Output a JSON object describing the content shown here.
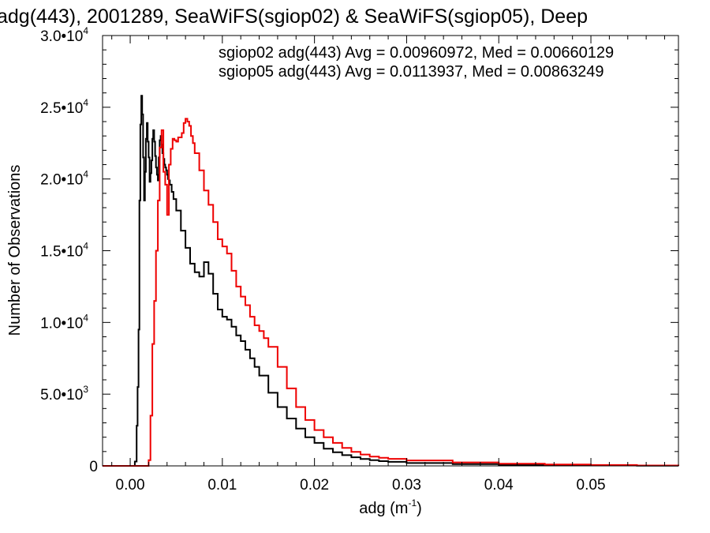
{
  "chart_data": {
    "type": "line",
    "title": "adg(443), 2001289, SeaWiFS(sgiop02) & SeaWiFS(sgiop05), Deep",
    "xlabel": "adg (m",
    "xlabel_sup": "-1",
    "xlabel_end": ")",
    "ylabel": "Number of Observations",
    "xlim": [
      -0.003,
      0.0595
    ],
    "ylim": [
      0,
      30000
    ],
    "x_ticks": [
      {
        "value": 0.0,
        "label": "0.00"
      },
      {
        "value": 0.01,
        "label": "0.01"
      },
      {
        "value": 0.02,
        "label": "0.02"
      },
      {
        "value": 0.03,
        "label": "0.03"
      },
      {
        "value": 0.04,
        "label": "0.04"
      },
      {
        "value": 0.05,
        "label": "0.05"
      }
    ],
    "y_ticks": [
      {
        "value": 0,
        "mant": "0",
        "exp": ""
      },
      {
        "value": 5000,
        "mant": "5.0•10",
        "exp": "3"
      },
      {
        "value": 10000,
        "mant": "1.0•10",
        "exp": "4"
      },
      {
        "value": 15000,
        "mant": "1.5•10",
        "exp": "4"
      },
      {
        "value": 20000,
        "mant": "2.0•10",
        "exp": "4"
      },
      {
        "value": 25000,
        "mant": "2.5•10",
        "exp": "4"
      },
      {
        "value": 30000,
        "mant": "3.0•10",
        "exp": "4"
      }
    ],
    "legend_position": "top-right",
    "series": [
      {
        "name": "sgiop02",
        "label": "sgiop02 adg(443) Avg = 0.00960972, Med = 0.00660129",
        "color": "#000000",
        "x": [
          -0.003,
          0.0003,
          0.0005,
          0.0007,
          0.0008,
          0.0009,
          0.001,
          0.0011,
          0.0012,
          0.0013,
          0.0014,
          0.0015,
          0.0016,
          0.0017,
          0.0018,
          0.0019,
          0.002,
          0.0021,
          0.0022,
          0.0023,
          0.0024,
          0.0025,
          0.0026,
          0.0027,
          0.0028,
          0.0029,
          0.003,
          0.0031,
          0.0032,
          0.0033,
          0.0034,
          0.0035,
          0.0036,
          0.0037,
          0.0038,
          0.0039,
          0.004,
          0.0041,
          0.0042,
          0.0043,
          0.0045,
          0.0047,
          0.005,
          0.0055,
          0.006,
          0.0065,
          0.007,
          0.0075,
          0.008,
          0.0085,
          0.009,
          0.0095,
          0.01,
          0.0105,
          0.011,
          0.0115,
          0.012,
          0.0125,
          0.013,
          0.0135,
          0.014,
          0.015,
          0.016,
          0.017,
          0.018,
          0.019,
          0.02,
          0.021,
          0.022,
          0.023,
          0.024,
          0.025,
          0.026,
          0.027,
          0.028,
          0.03,
          0.035,
          0.04,
          0.045,
          0.05,
          0.055,
          0.0595
        ],
        "y": [
          0,
          0,
          300,
          2800,
          5500,
          9500,
          18500,
          23800,
          25800,
          24500,
          21500,
          18500,
          20500,
          22800,
          23900,
          22600,
          21500,
          19800,
          20400,
          21300,
          22800,
          23400,
          22600,
          21600,
          20800,
          20300,
          19900,
          21500,
          22700,
          23000,
          22400,
          21800,
          21400,
          21000,
          20800,
          20600,
          20300,
          20000,
          19900,
          19600,
          19100,
          18600,
          17800,
          16400,
          15200,
          14100,
          13500,
          13200,
          14200,
          13400,
          12000,
          10900,
          10400,
          10200,
          9700,
          9100,
          8700,
          8100,
          7500,
          6900,
          6300,
          5100,
          4100,
          3300,
          2600,
          2000,
          1600,
          1200,
          950,
          750,
          600,
          480,
          400,
          330,
          280,
          200,
          120,
          80,
          50,
          30,
          15,
          0
        ]
      },
      {
        "name": "sgiop05",
        "label": "sgiop05 adg(443) Avg = 0.0113937, Med = 0.00863249",
        "color": "#ee0000",
        "x": [
          -0.003,
          0.0018,
          0.002,
          0.0022,
          0.0024,
          0.0026,
          0.0028,
          0.003,
          0.0032,
          0.0034,
          0.0036,
          0.0038,
          0.004,
          0.0042,
          0.0044,
          0.0046,
          0.0048,
          0.005,
          0.0052,
          0.0054,
          0.0056,
          0.0058,
          0.006,
          0.0062,
          0.0064,
          0.0066,
          0.0068,
          0.007,
          0.0075,
          0.008,
          0.0085,
          0.009,
          0.0095,
          0.01,
          0.0105,
          0.011,
          0.0115,
          0.012,
          0.0125,
          0.013,
          0.0135,
          0.014,
          0.0145,
          0.015,
          0.016,
          0.017,
          0.018,
          0.019,
          0.02,
          0.021,
          0.022,
          0.023,
          0.024,
          0.025,
          0.026,
          0.027,
          0.028,
          0.03,
          0.035,
          0.04,
          0.045,
          0.05,
          0.055,
          0.0595
        ],
        "y": [
          0,
          0,
          400,
          3500,
          8500,
          11500,
          15000,
          18500,
          22200,
          23400,
          20500,
          19600,
          17500,
          21000,
          22100,
          22800,
          22700,
          22600,
          22900,
          22900,
          23200,
          23900,
          24200,
          24000,
          23700,
          23000,
          22500,
          21800,
          20600,
          19200,
          18200,
          17000,
          15800,
          15300,
          14800,
          13600,
          12500,
          11800,
          11200,
          10400,
          9800,
          9400,
          8900,
          8300,
          6900,
          5400,
          4100,
          3200,
          2500,
          2000,
          1600,
          1250,
          980,
          790,
          650,
          560,
          490,
          380,
          240,
          150,
          100,
          60,
          30,
          0
        ]
      }
    ]
  }
}
